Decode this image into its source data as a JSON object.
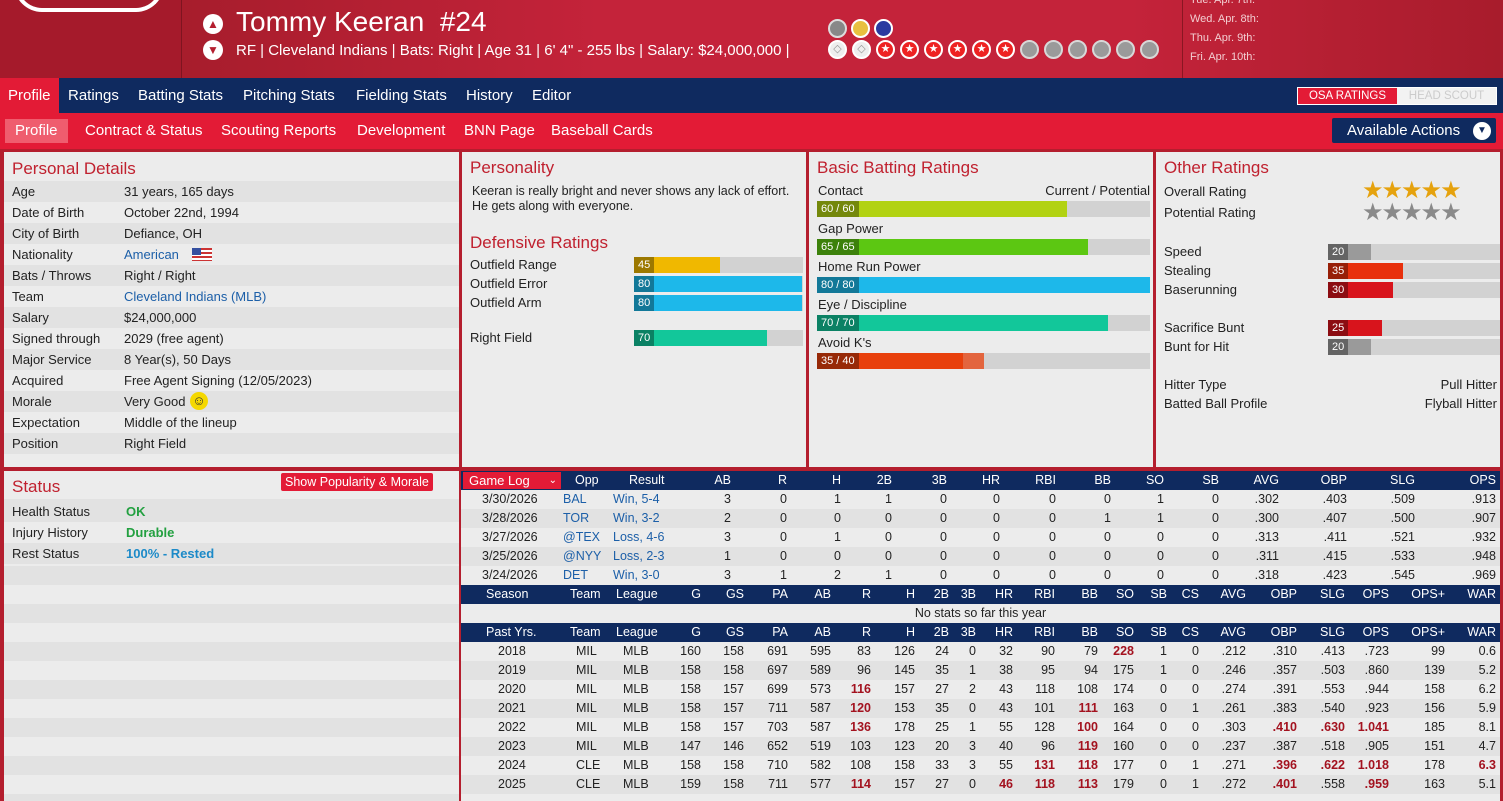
{
  "player": {
    "name": "Tommy Keeran",
    "number": "#24",
    "info": "RF | Cleveland Indians  |  Bats: Right  |  Age 31  |  6' 4\" - 255 lbs  |  Salary: $24,000,000  |"
  },
  "schedule": [
    "Tue. Apr. 7th:",
    "Wed. Apr. 8th:",
    "Thu. Apr. 9th:",
    "Fri. Apr. 10th:"
  ],
  "tabs_main": [
    "Profile",
    "Ratings",
    "Batting Stats",
    "Pitching Stats",
    "Fielding Stats",
    "History",
    "Editor"
  ],
  "ratings_toggle": {
    "osa": "OSA RATINGS",
    "scout": "HEAD SCOUT"
  },
  "tabs_sub": [
    "Profile",
    "Contract & Status",
    "Scouting Reports",
    "Development",
    "BNN Page",
    "Baseball Cards"
  ],
  "available_actions": "Available Actions",
  "personal": {
    "title": "Personal Details",
    "rows": [
      {
        "k": "Age",
        "v": "31 years, 165 days"
      },
      {
        "k": "Date of Birth",
        "v": "October 22nd, 1994"
      },
      {
        "k": "City of Birth",
        "v": "Defiance, OH"
      },
      {
        "k": "Nationality",
        "v": "American"
      },
      {
        "k": "Bats / Throws",
        "v": "Right / Right"
      },
      {
        "k": "Team",
        "v": "Cleveland Indians (MLB)"
      },
      {
        "k": "Salary",
        "v": "$24,000,000"
      },
      {
        "k": "Signed through",
        "v": "2029 (free agent)"
      },
      {
        "k": "Major Service",
        "v": "8 Year(s), 50 Days"
      },
      {
        "k": "Acquired",
        "v": "Free Agent Signing (12/05/2023)"
      },
      {
        "k": "Morale",
        "v": "Very Good"
      },
      {
        "k": "Expectation",
        "v": "Middle of the lineup"
      },
      {
        "k": "Position",
        "v": "Right Field"
      }
    ]
  },
  "personality": {
    "title": "Personality",
    "text": "Keeran is really bright and never shows any lack of effort. He gets along with everyone."
  },
  "defensive": {
    "title": "Defensive Ratings",
    "items": [
      {
        "label": "Outfield Range",
        "value": 45,
        "color": "#f0b800"
      },
      {
        "label": "Outfield Error",
        "value": 80,
        "color": "#1db8ea"
      },
      {
        "label": "Outfield Arm",
        "value": 80,
        "color": "#1db8ea"
      },
      {
        "label": "Right Field",
        "value": 70,
        "color": "#12c79a"
      }
    ]
  },
  "batting": {
    "title": "Basic Batting Ratings",
    "header": "Current / Potential",
    "items": [
      {
        "label": "Contact",
        "text": "60 / 60",
        "cur": 60,
        "pot": 60,
        "color": "#b2d212"
      },
      {
        "label": "Gap Power",
        "text": "65 / 65",
        "cur": 65,
        "pot": 65,
        "color": "#5cc712"
      },
      {
        "label": "Home Run Power",
        "text": "80 / 80",
        "cur": 80,
        "pot": 80,
        "color": "#1db8ea"
      },
      {
        "label": "Eye / Discipline",
        "text": "70 / 70",
        "cur": 70,
        "pot": 70,
        "color": "#12c79a"
      },
      {
        "label": "Avoid K's",
        "text": "35 / 40",
        "cur": 35,
        "pot": 40,
        "color": "#e8400c"
      }
    ]
  },
  "other": {
    "title": "Other Ratings",
    "overall_label": "Overall Rating",
    "overall_stars": 5,
    "potential_label": "Potential Rating",
    "potential_stars": 5,
    "items": [
      {
        "label": "Speed",
        "value": 20,
        "color": "#9a9a9a"
      },
      {
        "label": "Stealing",
        "value": 35,
        "color": "#e8300c"
      },
      {
        "label": "Baserunning",
        "value": 30,
        "color": "#d8141c"
      },
      {
        "label": "Sacrifice Bunt",
        "value": 25,
        "color": "#d8141c"
      },
      {
        "label": "Bunt for Hit",
        "value": 20,
        "color": "#9a9a9a"
      }
    ],
    "hitter_type_label": "Hitter Type",
    "hitter_type": "Pull Hitter",
    "batted_label": "Batted Ball Profile",
    "batted": "Flyball Hitter"
  },
  "status": {
    "title": "Status",
    "button": "Show Popularity & Morale",
    "rows": [
      {
        "k": "Health Status",
        "v": "OK",
        "color": "#22a040"
      },
      {
        "k": "Injury History",
        "v": "Durable",
        "color": "#22a040"
      },
      {
        "k": "Rest Status",
        "v": "100% - Rested",
        "color": "#1c8ac8"
      }
    ]
  },
  "gamelog": {
    "button": "Game Log",
    "headers": [
      "Opp",
      "Result",
      "AB",
      "R",
      "H",
      "2B",
      "3B",
      "HR",
      "RBI",
      "BB",
      "SO",
      "SB",
      "AVG",
      "OBP",
      "SLG",
      "OPS"
    ],
    "rows": [
      [
        "3/30/2026",
        "BAL",
        "Win, 5-4",
        "3",
        "0",
        "1",
        "1",
        "0",
        "0",
        "0",
        "0",
        "1",
        "0",
        ".302",
        ".403",
        ".509",
        ".913"
      ],
      [
        "3/28/2026",
        "TOR",
        "Win, 3-2",
        "2",
        "0",
        "0",
        "0",
        "0",
        "0",
        "0",
        "1",
        "1",
        "0",
        ".300",
        ".407",
        ".500",
        ".907"
      ],
      [
        "3/27/2026",
        "@TEX",
        "Loss, 4-6",
        "3",
        "0",
        "1",
        "0",
        "0",
        "0",
        "0",
        "0",
        "0",
        "0",
        ".313",
        ".411",
        ".521",
        ".932"
      ],
      [
        "3/25/2026",
        "@NYY",
        "Loss, 2-3",
        "1",
        "0",
        "0",
        "0",
        "0",
        "0",
        "0",
        "0",
        "0",
        "0",
        ".311",
        ".415",
        ".533",
        ".948"
      ],
      [
        "3/24/2026",
        "DET",
        "Win, 3-0",
        "3",
        "1",
        "2",
        "1",
        "0",
        "0",
        "0",
        "0",
        "0",
        "0",
        ".318",
        ".423",
        ".545",
        ".969"
      ]
    ]
  },
  "season": {
    "headers": [
      "Season",
      "Team",
      "League",
      "G",
      "GS",
      "PA",
      "AB",
      "R",
      "H",
      "2B",
      "3B",
      "HR",
      "RBI",
      "BB",
      "SO",
      "SB",
      "CS",
      "AVG",
      "OBP",
      "SLG",
      "OPS",
      "OPS+",
      "WAR"
    ],
    "empty": "No stats so far this year"
  },
  "past": {
    "headers": [
      "Past Yrs.",
      "Team",
      "League",
      "G",
      "GS",
      "PA",
      "AB",
      "R",
      "H",
      "2B",
      "3B",
      "HR",
      "RBI",
      "BB",
      "SO",
      "SB",
      "CS",
      "AVG",
      "OBP",
      "SLG",
      "OPS",
      "OPS+",
      "WAR"
    ],
    "rows": [
      [
        "2018",
        "MIL",
        "MLB",
        "160",
        "158",
        "691",
        "595",
        "83",
        "126",
        "24",
        "0",
        "32",
        "90",
        "79",
        "228",
        "1",
        "0",
        ".212",
        ".310",
        ".413",
        ".723",
        "99",
        "0.6"
      ],
      [
        "2019",
        "MIL",
        "MLB",
        "158",
        "158",
        "697",
        "589",
        "96",
        "145",
        "35",
        "1",
        "38",
        "95",
        "94",
        "175",
        "1",
        "0",
        ".246",
        ".357",
        ".503",
        ".860",
        "139",
        "5.2"
      ],
      [
        "2020",
        "MIL",
        "MLB",
        "158",
        "157",
        "699",
        "573",
        "116",
        "157",
        "27",
        "2",
        "43",
        "118",
        "108",
        "174",
        "0",
        "0",
        ".274",
        ".391",
        ".553",
        ".944",
        "158",
        "6.2"
      ],
      [
        "2021",
        "MIL",
        "MLB",
        "158",
        "157",
        "711",
        "587",
        "120",
        "153",
        "35",
        "0",
        "43",
        "101",
        "111",
        "163",
        "0",
        "1",
        ".261",
        ".383",
        ".540",
        ".923",
        "156",
        "5.9"
      ],
      [
        "2022",
        "MIL",
        "MLB",
        "158",
        "157",
        "703",
        "587",
        "136",
        "178",
        "25",
        "1",
        "55",
        "128",
        "100",
        "164",
        "0",
        "0",
        ".303",
        ".410",
        ".630",
        "1.041",
        "185",
        "8.1"
      ],
      [
        "2023",
        "MIL",
        "MLB",
        "147",
        "146",
        "652",
        "519",
        "103",
        "123",
        "20",
        "3",
        "40",
        "96",
        "119",
        "160",
        "0",
        "0",
        ".237",
        ".387",
        ".518",
        ".905",
        "151",
        "4.7"
      ],
      [
        "2024",
        "CLE",
        "MLB",
        "158",
        "158",
        "710",
        "582",
        "108",
        "158",
        "33",
        "3",
        "55",
        "131",
        "118",
        "177",
        "0",
        "1",
        ".271",
        ".396",
        ".622",
        "1.018",
        "178",
        "6.3"
      ],
      [
        "2025",
        "CLE",
        "MLB",
        "159",
        "158",
        "711",
        "577",
        "114",
        "157",
        "27",
        "0",
        "46",
        "118",
        "113",
        "179",
        "0",
        "1",
        ".272",
        ".401",
        ".558",
        ".959",
        "163",
        "5.1"
      ]
    ],
    "highlights": [
      [
        14
      ],
      [],
      [
        7
      ],
      [
        7,
        13
      ],
      [
        7,
        13,
        18,
        19,
        20
      ],
      [
        13
      ],
      [
        12,
        13,
        18,
        19,
        20,
        22
      ],
      [
        7,
        11,
        12,
        13,
        18,
        20
      ]
    ]
  }
}
